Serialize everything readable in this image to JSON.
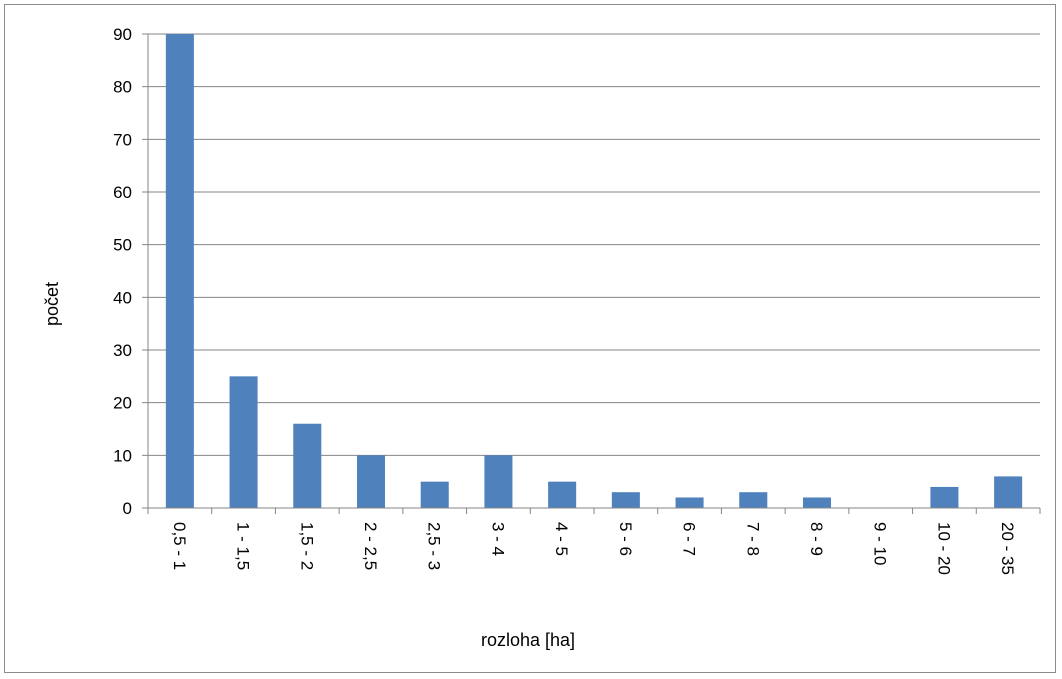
{
  "chart_data": {
    "type": "bar",
    "title": "",
    "xlabel": "rozloha [ha]",
    "ylabel": "počet",
    "categories": [
      "0,5 - 1",
      "1 - 1,5",
      "1,5 - 2",
      "2 - 2,5",
      "2,5 - 3",
      "3 - 4",
      "4 - 5",
      "5 - 6",
      "6 - 7",
      "7 - 8",
      "8 - 9",
      "9 - 10",
      "10 - 20",
      "20 - 35"
    ],
    "values": [
      90,
      25,
      16,
      10,
      5,
      10,
      5,
      3,
      2,
      3,
      2,
      0,
      4,
      6
    ],
    "ylim": [
      0,
      90
    ],
    "yticks": [
      0,
      10,
      20,
      30,
      40,
      50,
      60,
      70,
      80,
      90
    ],
    "grid": true,
    "legend": "none",
    "colors": {
      "bar": "#4f81bd",
      "grid": "#868686",
      "axis": "#868686",
      "frame": "#8c8c8c"
    }
  }
}
